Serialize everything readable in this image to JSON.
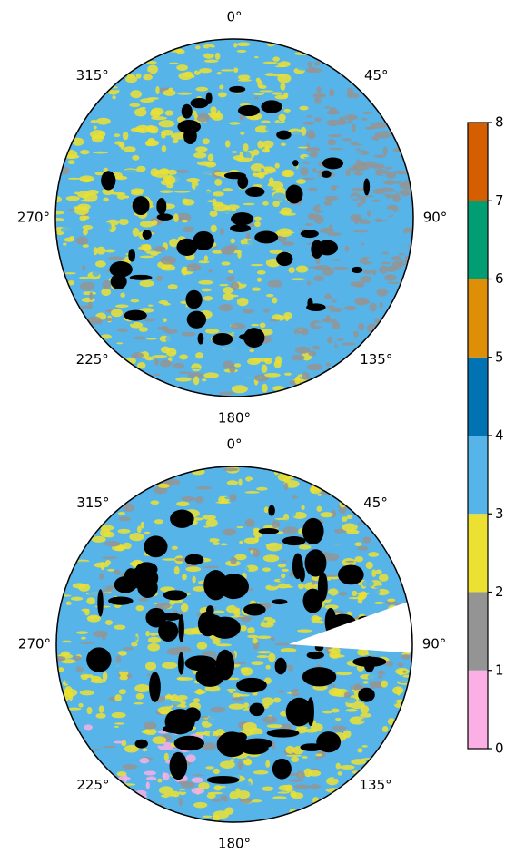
{
  "chart_data": [
    {
      "type": "polar-map",
      "theta_ticks": [
        {
          "value": 0,
          "label": "0°"
        },
        {
          "value": 45,
          "label": "45°"
        },
        {
          "value": 90,
          "label": "90°"
        },
        {
          "value": 135,
          "label": "135°"
        },
        {
          "value": 180,
          "label": "180°"
        },
        {
          "value": 225,
          "label": "225°"
        },
        {
          "value": 270,
          "label": "270°"
        },
        {
          "value": 315,
          "label": "315°"
        }
      ]
    },
    {
      "type": "polar-map",
      "theta_ticks": [
        {
          "value": 0,
          "label": "0°"
        },
        {
          "value": 45,
          "label": "45°"
        },
        {
          "value": 90,
          "label": "90°"
        },
        {
          "value": 135,
          "label": "135°"
        },
        {
          "value": 180,
          "label": "180°"
        },
        {
          "value": 225,
          "label": "225°"
        },
        {
          "value": 270,
          "label": "270°"
        },
        {
          "value": 315,
          "label": "315°"
        }
      ]
    },
    {
      "type": "colorbar",
      "ylim": [
        0,
        8
      ],
      "yticks": [
        0,
        1,
        2,
        3,
        4,
        5,
        6,
        7,
        8
      ],
      "colors": [
        "#fbafe4",
        "#949494",
        "#ece133",
        "#56b4e9",
        "#0173b2",
        "#de8f05",
        "#029e73",
        "#d55e00"
      ]
    }
  ]
}
